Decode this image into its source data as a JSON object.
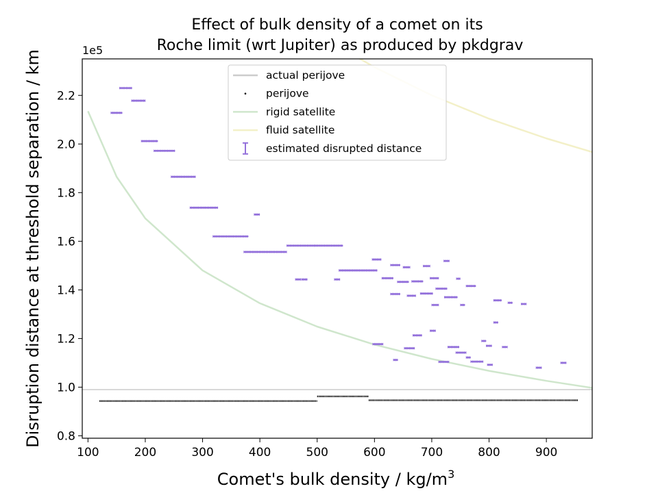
{
  "chart_data": {
    "type": "scatter",
    "title_lines": [
      "Effect of bulk density of a comet on its",
      "Roche limit (wrt Jupiter) as produced by pkdgrav"
    ],
    "xlabel": "Comet's bulk density / kg/m",
    "xlabel_sup": "3",
    "ylabel": "Disruption distance at threshold separation / km",
    "y_offset_label": "1e5",
    "xlim": [
      90,
      980
    ],
    "ylim": [
      0.79,
      2.35
    ],
    "y_scale_note": "y values in units of 1e5 km",
    "x_ticks": [
      100,
      200,
      300,
      400,
      500,
      600,
      700,
      800,
      900
    ],
    "x_tick_labels": [
      "100",
      "200",
      "300",
      "400",
      "500",
      "600",
      "700",
      "800",
      "900"
    ],
    "y_ticks": [
      0.8,
      1.0,
      1.2,
      1.4,
      1.6,
      1.8,
      2.0,
      2.2
    ],
    "y_tick_labels": [
      "0.8",
      "1.0",
      "1.2",
      "1.4",
      "1.6",
      "1.8",
      "2.0",
      "2.2"
    ],
    "grid": false,
    "legend_position": "upper-center",
    "legend": [
      {
        "label": "actual perijove",
        "kind": "line",
        "color": "#cccccc"
      },
      {
        "label": "perijove",
        "kind": "dot",
        "color": "#000000"
      },
      {
        "label": "rigid satellite",
        "kind": "line",
        "color": "#cfe6cc"
      },
      {
        "label": "fluid satellite",
        "kind": "line",
        "color": "#f3f0c8"
      },
      {
        "label": "estimated disrupted distance",
        "kind": "errorbar",
        "color": "#9370db"
      }
    ],
    "actual_perijove": 0.99,
    "rigid_satellite_curve": {
      "x": [
        100,
        150,
        200,
        300,
        400,
        500,
        600,
        700,
        800,
        900,
        980
      ],
      "y": [
        2.135,
        1.865,
        1.694,
        1.48,
        1.345,
        1.249,
        1.175,
        1.116,
        1.067,
        1.026,
        0.997
      ]
    },
    "fluid_satellite_curve": {
      "x": [
        560,
        600,
        700,
        800,
        900,
        980
      ],
      "y": [
        2.37,
        2.316,
        2.2,
        2.104,
        2.023,
        1.967
      ]
    },
    "estimated_disrupted_distance": [
      {
        "x": [
          140,
          160
        ],
        "y": 2.128
      },
      {
        "x": [
          155,
          177
        ],
        "y": 2.23
      },
      {
        "x": [
          176,
          200
        ],
        "y": 2.178
      },
      {
        "x": [
          193,
          222
        ],
        "y": 2.012
      },
      {
        "x": [
          215,
          252
        ],
        "y": 1.972
      },
      {
        "x": [
          245,
          288
        ],
        "y": 1.865
      },
      {
        "x": [
          278,
          327
        ],
        "y": 1.738
      },
      {
        "x": [
          318,
          380
        ],
        "y": 1.62
      },
      {
        "x": [
          390,
          400
        ],
        "y": 1.71
      },
      {
        "x": [
          372,
          447
        ],
        "y": 1.556
      },
      {
        "x": [
          447,
          500
        ],
        "y": 1.582
      },
      {
        "x": [
          495,
          545
        ],
        "y": 1.582
      },
      {
        "x": [
          462,
          472
        ],
        "y": 1.443
      },
      {
        "x": [
          473,
          483
        ],
        "y": 1.443
      },
      {
        "x": [
          530,
          540
        ],
        "y": 1.443
      },
      {
        "x": [
          538,
          605
        ],
        "y": 1.48
      },
      {
        "x": [
          596,
          612
        ],
        "y": 1.525
      },
      {
        "x": [
          613,
          633
        ],
        "y": 1.448
      },
      {
        "x": [
          628,
          645
        ],
        "y": 1.502
      },
      {
        "x": [
          628,
          645
        ],
        "y": 1.383
      },
      {
        "x": [
          650,
          662
        ],
        "y": 1.493
      },
      {
        "x": [
          640,
          660
        ],
        "y": 1.433
      },
      {
        "x": [
          657,
          672
        ],
        "y": 1.376
      },
      {
        "x": [
          665,
          685
        ],
        "y": 1.435
      },
      {
        "x": [
          685,
          697
        ],
        "y": 1.498
      },
      {
        "x": [
          680,
          702
        ],
        "y": 1.385
      },
      {
        "x": [
          697,
          712
        ],
        "y": 1.448
      },
      {
        "x": [
          700,
          712
        ],
        "y": 1.338
      },
      {
        "x": [
          707,
          727
        ],
        "y": 1.405
      },
      {
        "x": [
          721,
          731
        ],
        "y": 1.519
      },
      {
        "x": [
          722,
          745
        ],
        "y": 1.37
      },
      {
        "x": [
          743,
          750
        ],
        "y": 1.446
      },
      {
        "x": [
          750,
          758
        ],
        "y": 1.338
      },
      {
        "x": [
          760,
          777
        ],
        "y": 1.416
      },
      {
        "x": [
          808,
          822
        ],
        "y": 1.357
      },
      {
        "x": [
          833,
          841
        ],
        "y": 1.347
      },
      {
        "x": [
          856,
          865
        ],
        "y": 1.342
      },
      {
        "x": [
          808,
          816
        ],
        "y": 1.266
      },
      {
        "x": [
          697,
          707
        ],
        "y": 1.232
      },
      {
        "x": [
          667,
          683
        ],
        "y": 1.213
      },
      {
        "x": [
          597,
          615
        ],
        "y": 1.177
      },
      {
        "x": [
          652,
          670
        ],
        "y": 1.16
      },
      {
        "x": [
          728,
          748
        ],
        "y": 1.165
      },
      {
        "x": [
          742,
          760
        ],
        "y": 1.142
      },
      {
        "x": [
          760,
          768
        ],
        "y": 1.122
      },
      {
        "x": [
          787,
          795
        ],
        "y": 1.19
      },
      {
        "x": [
          795,
          805
        ],
        "y": 1.17
      },
      {
        "x": [
          823,
          832
        ],
        "y": 1.165
      },
      {
        "x": [
          633,
          641
        ],
        "y": 1.112
      },
      {
        "x": [
          712,
          730
        ],
        "y": 1.104
      },
      {
        "x": [
          768,
          790
        ],
        "y": 1.105
      },
      {
        "x": [
          797,
          806
        ],
        "y": 1.092
      },
      {
        "x": [
          882,
          892
        ],
        "y": 1.08
      },
      {
        "x": [
          925,
          935
        ],
        "y": 1.1
      }
    ],
    "perijove_points": [
      {
        "x": [
          120,
          500
        ],
        "y": 0.943
      },
      {
        "x": [
          500,
          590
        ],
        "y": 0.962
      },
      {
        "x": [
          590,
          955
        ],
        "y": 0.946
      }
    ]
  }
}
